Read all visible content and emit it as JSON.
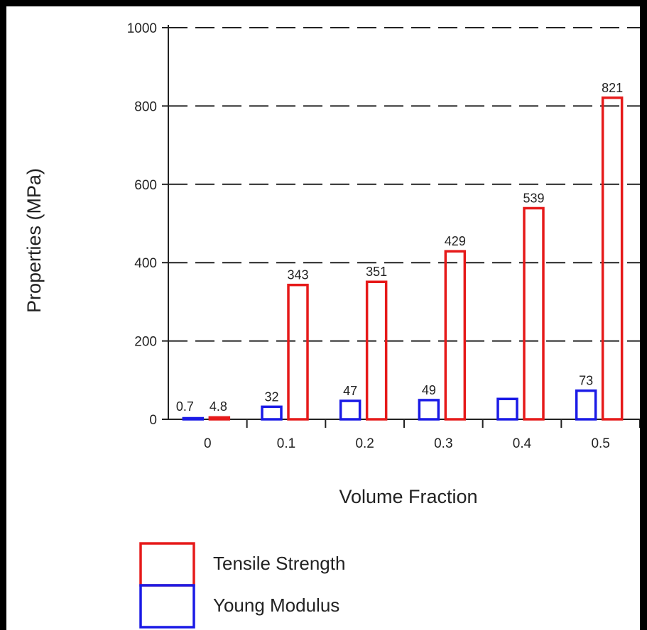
{
  "chart_data": {
    "type": "bar",
    "categories": [
      "0",
      "0.1",
      "0.2",
      "0.3",
      "0.4",
      "0.5"
    ],
    "series": [
      {
        "name": "Young Modulus",
        "color": "#1a1ae6",
        "values": [
          0.7,
          32,
          47,
          49,
          52,
          73
        ],
        "labels": [
          "0.7",
          "32",
          "47",
          "49",
          "",
          "73"
        ]
      },
      {
        "name": "Tensile Strength",
        "color": "#e61a1a",
        "values": [
          4.8,
          343,
          351,
          429,
          539,
          821
        ],
        "labels": [
          "4.8",
          "343",
          "351",
          "429",
          "539",
          "821"
        ]
      }
    ],
    "xlabel": "Volume Fraction",
    "ylabel": "Properties (MPa)",
    "ylim": [
      0,
      1000
    ],
    "yticks": [
      "0",
      "200",
      "400",
      "600",
      "800",
      "1000"
    ],
    "grid": "dashed horizontal",
    "legend": "bottom-left"
  }
}
